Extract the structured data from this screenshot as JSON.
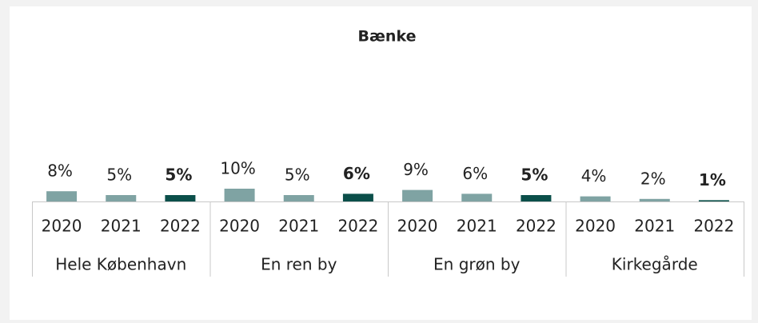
{
  "chart_data": {
    "type": "bar",
    "title": "Bænke",
    "groups": [
      {
        "name": "Hele København",
        "categories": [
          "2020",
          "2021",
          "2022"
        ],
        "values": [
          8,
          5,
          5
        ],
        "value_labels": [
          "8%",
          "5%",
          "5%"
        ],
        "colors": [
          "#7fa3a3",
          "#7fa3a3",
          "#0b4f4a"
        ]
      },
      {
        "name": "En ren by",
        "categories": [
          "2020",
          "2021",
          "2022"
        ],
        "values": [
          10,
          5,
          6
        ],
        "value_labels": [
          "10%",
          "5%",
          "6%"
        ],
        "colors": [
          "#7fa3a3",
          "#7fa3a3",
          "#0b4f4a"
        ]
      },
      {
        "name": "En grøn by",
        "categories": [
          "2020",
          "2021",
          "2022"
        ],
        "values": [
          9,
          6,
          5
        ],
        "value_labels": [
          "9%",
          "6%",
          "5%"
        ],
        "colors": [
          "#7fa3a3",
          "#7fa3a3",
          "#0b4f4a"
        ]
      },
      {
        "name": "Kirkegårde",
        "categories": [
          "2020",
          "2021",
          "2022"
        ],
        "values": [
          4,
          2,
          1
        ],
        "value_labels": [
          "4%",
          "2%",
          "1%"
        ],
        "colors": [
          "#7fa3a3",
          "#7fa3a3",
          "#0b4f4a"
        ]
      }
    ]
  }
}
